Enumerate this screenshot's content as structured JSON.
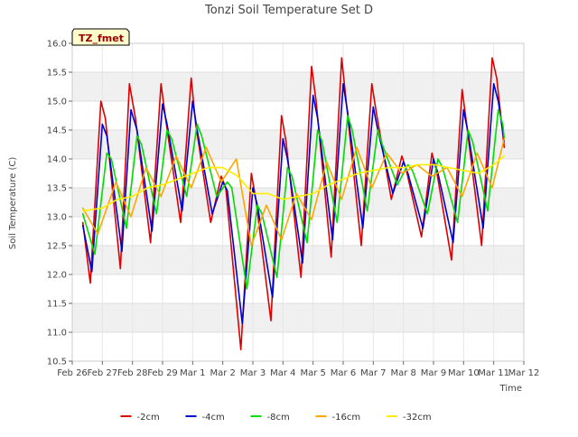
{
  "chart_data": {
    "type": "line",
    "title": "Tonzi Soil Temperature Set D",
    "xlabel": "Time",
    "ylabel": "Soil Temperature (C)",
    "annotation": "TZ_fmet",
    "ylim": [
      10.5,
      16.0
    ],
    "xlim": [
      0,
      15
    ],
    "yticks": [
      10.5,
      11.0,
      11.5,
      12.0,
      12.5,
      13.0,
      13.5,
      14.0,
      14.5,
      15.0,
      15.5,
      16.0
    ],
    "ytick_labels": [
      "10.5",
      "11.0",
      "11.5",
      "12.0",
      "12.5",
      "13.0",
      "13.5",
      "14.0",
      "14.5",
      "15.0",
      "15.5",
      "16.0"
    ],
    "xtick_labels": [
      "Feb 26",
      "Feb 27",
      "Feb 28",
      "Feb 29",
      "Mar 1",
      "Mar 2",
      "Mar 3",
      "Mar 4",
      "Mar 5",
      "Mar 6",
      "Mar 7",
      "Mar 8",
      "Mar 9",
      "Mar 10",
      "Mar 11",
      "Mar 12"
    ],
    "grid": "horizontal bands",
    "legend_position": "bottom",
    "series": [
      {
        "name": "-2cm",
        "color": "#dd0000",
        "x": [
          0.35,
          0.6,
          0.95,
          1.1,
          1.6,
          1.9,
          2.1,
          2.6,
          2.95,
          3.1,
          3.6,
          3.95,
          4.1,
          4.6,
          4.95,
          5.1,
          5.6,
          5.95,
          6.1,
          6.6,
          6.95,
          7.1,
          7.6,
          7.95,
          8.1,
          8.6,
          8.95,
          9.1,
          9.6,
          9.95,
          10.1,
          10.6,
          10.95,
          11.1,
          11.6,
          11.95,
          12.1,
          12.6,
          12.95,
          13.1,
          13.6,
          13.95,
          14.1,
          14.35
        ],
        "y": [
          12.9,
          11.85,
          15.0,
          14.7,
          12.1,
          15.3,
          14.7,
          12.55,
          15.3,
          14.7,
          12.9,
          15.4,
          14.6,
          12.9,
          13.7,
          13.5,
          10.7,
          13.75,
          13.3,
          11.2,
          14.75,
          14.3,
          11.95,
          15.6,
          15.0,
          12.3,
          15.75,
          15.0,
          12.5,
          15.3,
          14.8,
          13.3,
          14.05,
          13.8,
          12.65,
          14.1,
          13.8,
          12.25,
          15.2,
          14.6,
          12.5,
          15.75,
          15.4,
          14.2
        ]
      },
      {
        "name": "-4cm",
        "color": "#0000cc",
        "x": [
          0.35,
          0.65,
          1.0,
          1.15,
          1.65,
          1.95,
          2.15,
          2.65,
          3.0,
          3.15,
          3.65,
          4.0,
          4.15,
          4.65,
          5.0,
          5.15,
          5.65,
          6.0,
          6.15,
          6.65,
          7.0,
          7.15,
          7.65,
          8.0,
          8.15,
          8.65,
          9.0,
          9.15,
          9.65,
          10.0,
          10.15,
          10.65,
          11.0,
          11.15,
          11.65,
          12.0,
          12.15,
          12.65,
          13.0,
          13.15,
          13.65,
          14.0,
          14.15,
          14.35
        ],
        "y": [
          12.85,
          12.05,
          14.6,
          14.4,
          12.4,
          14.85,
          14.5,
          12.75,
          14.95,
          14.6,
          13.1,
          15.0,
          14.5,
          13.05,
          13.6,
          13.45,
          11.15,
          13.5,
          13.2,
          11.6,
          14.35,
          14.0,
          12.2,
          15.1,
          14.7,
          12.6,
          15.3,
          14.8,
          12.8,
          14.9,
          14.5,
          13.4,
          13.95,
          13.75,
          12.8,
          14.0,
          13.75,
          12.55,
          14.85,
          14.45,
          12.8,
          15.3,
          15.0,
          14.3
        ]
      },
      {
        "name": "-8cm",
        "color": "#00dd00",
        "x": [
          0.35,
          0.75,
          1.15,
          1.3,
          1.8,
          2.15,
          2.3,
          2.8,
          3.15,
          3.3,
          3.8,
          4.15,
          4.3,
          4.8,
          5.15,
          5.3,
          5.8,
          6.15,
          6.3,
          6.8,
          7.15,
          7.3,
          7.8,
          8.15,
          8.3,
          8.8,
          9.15,
          9.3,
          9.8,
          10.15,
          10.3,
          10.8,
          11.15,
          11.3,
          11.8,
          12.15,
          12.3,
          12.8,
          13.15,
          13.3,
          13.8,
          14.15,
          14.3,
          14.35
        ],
        "y": [
          13.05,
          12.35,
          14.1,
          14.0,
          12.8,
          14.4,
          14.25,
          13.05,
          14.5,
          14.35,
          13.35,
          14.6,
          14.4,
          13.35,
          13.6,
          13.5,
          11.75,
          13.2,
          13.05,
          11.95,
          13.85,
          13.7,
          12.55,
          14.5,
          14.3,
          12.9,
          14.75,
          14.5,
          13.1,
          14.5,
          14.25,
          13.55,
          13.9,
          13.8,
          13.05,
          14.0,
          13.85,
          12.9,
          14.5,
          14.3,
          13.1,
          14.85,
          14.6,
          14.35
        ]
      },
      {
        "name": "-16cm",
        "color": "#ffa500",
        "x": [
          0.35,
          0.85,
          1.45,
          1.95,
          2.45,
          2.95,
          3.45,
          3.95,
          4.45,
          4.95,
          5.45,
          5.95,
          6.45,
          6.95,
          7.45,
          7.95,
          8.45,
          8.95,
          9.45,
          9.95,
          10.45,
          10.95,
          11.45,
          11.95,
          12.45,
          12.95,
          13.45,
          13.95,
          14.35
        ],
        "y": [
          13.15,
          12.7,
          13.6,
          13.0,
          13.85,
          13.35,
          14.05,
          13.5,
          14.2,
          13.6,
          14.0,
          12.5,
          13.2,
          12.6,
          13.4,
          12.95,
          13.95,
          13.3,
          14.2,
          13.5,
          14.1,
          13.75,
          13.9,
          13.7,
          13.85,
          13.35,
          14.1,
          13.5,
          14.35
        ]
      },
      {
        "name": "-32cm",
        "color": "#ffee00",
        "x": [
          0.35,
          1.0,
          1.5,
          2.0,
          2.5,
          3.0,
          3.5,
          4.0,
          4.5,
          5.0,
          5.5,
          6.0,
          6.5,
          7.0,
          7.5,
          8.0,
          8.5,
          9.0,
          9.5,
          10.0,
          10.5,
          11.0,
          11.5,
          12.0,
          12.5,
          13.0,
          13.5,
          14.0,
          14.35
        ],
        "y": [
          13.1,
          13.15,
          13.3,
          13.35,
          13.5,
          13.55,
          13.65,
          13.75,
          13.85,
          13.85,
          13.7,
          13.4,
          13.4,
          13.3,
          13.35,
          13.4,
          13.55,
          13.65,
          13.75,
          13.8,
          13.85,
          13.85,
          13.9,
          13.9,
          13.85,
          13.8,
          13.75,
          13.9,
          14.05
        ]
      }
    ]
  }
}
